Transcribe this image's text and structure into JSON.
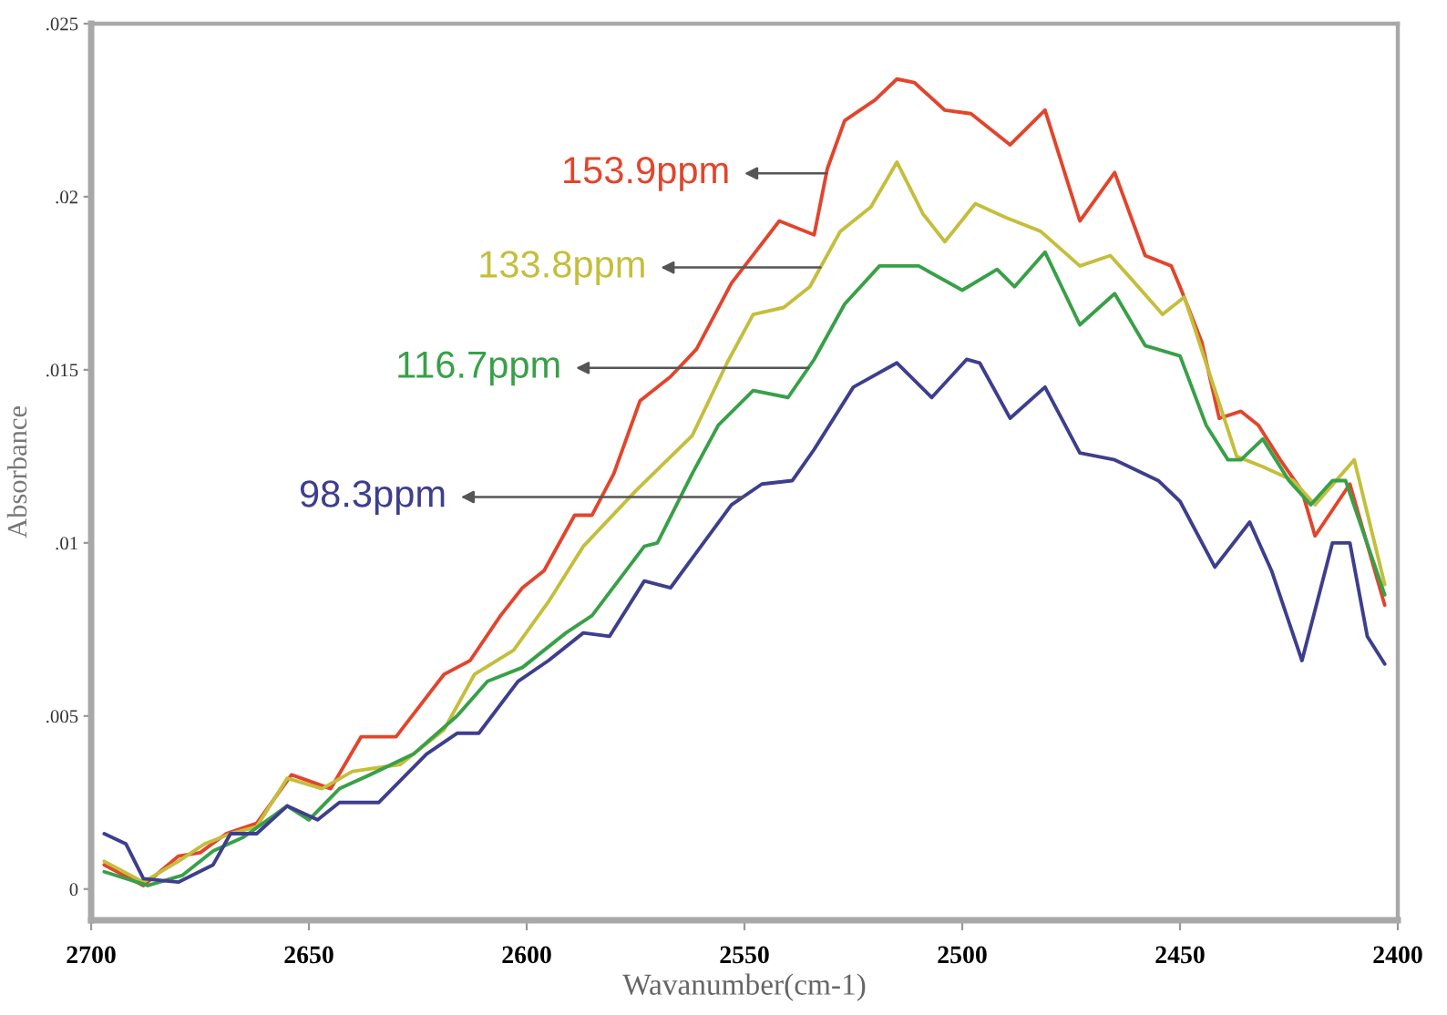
{
  "chart_data": {
    "type": "line",
    "xlabel": "Wavanumber(cm-1)",
    "ylabel": "Absorbance",
    "xlim": [
      2700,
      2400
    ],
    "xticks": [
      2700,
      2650,
      2600,
      2550,
      2500,
      2450,
      2400
    ],
    "ylim": [
      -0.0009,
      0.025
    ],
    "yticks": [
      0,
      {
        "value": 0.005,
        "label": ".005"
      },
      {
        "value": 0.01,
        "label": ".01"
      },
      {
        "value": 0.015,
        "label": ".015"
      },
      {
        "value": 0.02,
        "label": ".02"
      },
      {
        "value": 0.025,
        "label": ".025"
      }
    ],
    "line_style": "solid",
    "marker": "none",
    "series": [
      {
        "name": "153.9ppm",
        "color": "#e2452c",
        "x": [
          2697,
          2688,
          2680,
          2675,
          2669,
          2662,
          2654,
          2645,
          2638,
          2630,
          2619,
          2613,
          2606,
          2601,
          2596,
          2589,
          2585,
          2580,
          2574,
          2567,
          2561,
          2553,
          2542,
          2534,
          2531,
          2527,
          2520,
          2515,
          2511,
          2504,
          2498,
          2489,
          2481,
          2473,
          2465,
          2458,
          2452,
          2450,
          2445,
          2441,
          2436,
          2432,
          2427,
          2422,
          2419,
          2411,
          2403
        ],
        "values": [
          0.0007,
          0.0001,
          0.00095,
          0.00105,
          0.0016,
          0.0019,
          0.0033,
          0.0029,
          0.0044,
          0.0044,
          0.0062,
          0.0066,
          0.0079,
          0.0087,
          0.0092,
          0.0108,
          0.0108,
          0.012,
          0.0141,
          0.0148,
          0.0156,
          0.0175,
          0.0193,
          0.0189,
          0.0208,
          0.0222,
          0.0228,
          0.0234,
          0.0233,
          0.0225,
          0.0224,
          0.0215,
          0.0225,
          0.0193,
          0.0207,
          0.0183,
          0.018,
          0.0174,
          0.0158,
          0.0136,
          0.0138,
          0.0134,
          0.0124,
          0.0115,
          0.0102,
          0.0117,
          0.0082
        ]
      },
      {
        "name": "133.8ppm",
        "color": "#c4be3c",
        "x": [
          2697,
          2688,
          2680,
          2674,
          2668,
          2662,
          2655,
          2647,
          2640,
          2629,
          2619,
          2612,
          2603,
          2595,
          2587,
          2575,
          2562,
          2554,
          2548,
          2541,
          2535,
          2528,
          2521,
          2515,
          2509,
          2504,
          2497,
          2490,
          2482,
          2473,
          2466,
          2461,
          2454,
          2449,
          2443,
          2437,
          2431,
          2424,
          2419,
          2410,
          2403
        ],
        "values": [
          0.0008,
          0.0002,
          0.0008,
          0.0013,
          0.0016,
          0.0018,
          0.0032,
          0.0029,
          0.0034,
          0.0036,
          0.0046,
          0.0062,
          0.0069,
          0.0083,
          0.0099,
          0.0115,
          0.0131,
          0.0152,
          0.0166,
          0.0168,
          0.0174,
          0.019,
          0.0197,
          0.021,
          0.0195,
          0.0187,
          0.0198,
          0.0194,
          0.019,
          0.018,
          0.0183,
          0.0176,
          0.0166,
          0.0171,
          0.0148,
          0.0125,
          0.0122,
          0.0118,
          0.0111,
          0.0124,
          0.0088
        ]
      },
      {
        "name": "116.7ppm",
        "color": "#38a048",
        "x": [
          2697,
          2687,
          2679,
          2672,
          2665,
          2655,
          2650,
          2643,
          2636,
          2626,
          2616,
          2609,
          2601,
          2591,
          2585,
          2573,
          2570,
          2562,
          2556,
          2548,
          2540,
          2534,
          2527,
          2519,
          2510,
          2500,
          2492,
          2488,
          2481,
          2473,
          2465,
          2458,
          2450,
          2444,
          2439,
          2436,
          2431,
          2425,
          2420,
          2415,
          2412,
          2403
        ],
        "values": [
          0.0005,
          0.0001,
          0.0004,
          0.0011,
          0.0015,
          0.0024,
          0.002,
          0.0029,
          0.0033,
          0.0039,
          0.005,
          0.006,
          0.0064,
          0.0074,
          0.0079,
          0.0099,
          0.01,
          0.012,
          0.0134,
          0.0144,
          0.0142,
          0.0153,
          0.0169,
          0.018,
          0.018,
          0.0173,
          0.0179,
          0.0174,
          0.0184,
          0.0163,
          0.0172,
          0.0157,
          0.0154,
          0.0134,
          0.0124,
          0.0124,
          0.013,
          0.0118,
          0.0111,
          0.0118,
          0.0118,
          0.0085
        ]
      },
      {
        "name": "98.3ppm",
        "color": "#3e3e8e",
        "x": [
          2697,
          2692,
          2688,
          2680,
          2672,
          2668,
          2662,
          2655,
          2648,
          2643,
          2634,
          2623,
          2616,
          2611,
          2602,
          2595,
          2587,
          2581,
          2573,
          2567,
          2553,
          2546,
          2539,
          2534,
          2525,
          2515,
          2507,
          2499,
          2496,
          2489,
          2481,
          2473,
          2465,
          2455,
          2450,
          2442,
          2434,
          2429,
          2422,
          2415,
          2411,
          2407,
          2403
        ],
        "values": [
          0.0016,
          0.0013,
          0.0003,
          0.0002,
          0.0007,
          0.0016,
          0.0016,
          0.0024,
          0.002,
          0.0025,
          0.0025,
          0.0039,
          0.0045,
          0.0045,
          0.006,
          0.0066,
          0.0074,
          0.0073,
          0.0089,
          0.0087,
          0.0111,
          0.0117,
          0.0118,
          0.0127,
          0.0145,
          0.0152,
          0.0142,
          0.0153,
          0.0152,
          0.0136,
          0.0145,
          0.0126,
          0.0124,
          0.0118,
          0.0112,
          0.0093,
          0.0106,
          0.0092,
          0.0066,
          0.01,
          0.01,
          0.0073,
          0.0065
        ]
      }
    ]
  }
}
